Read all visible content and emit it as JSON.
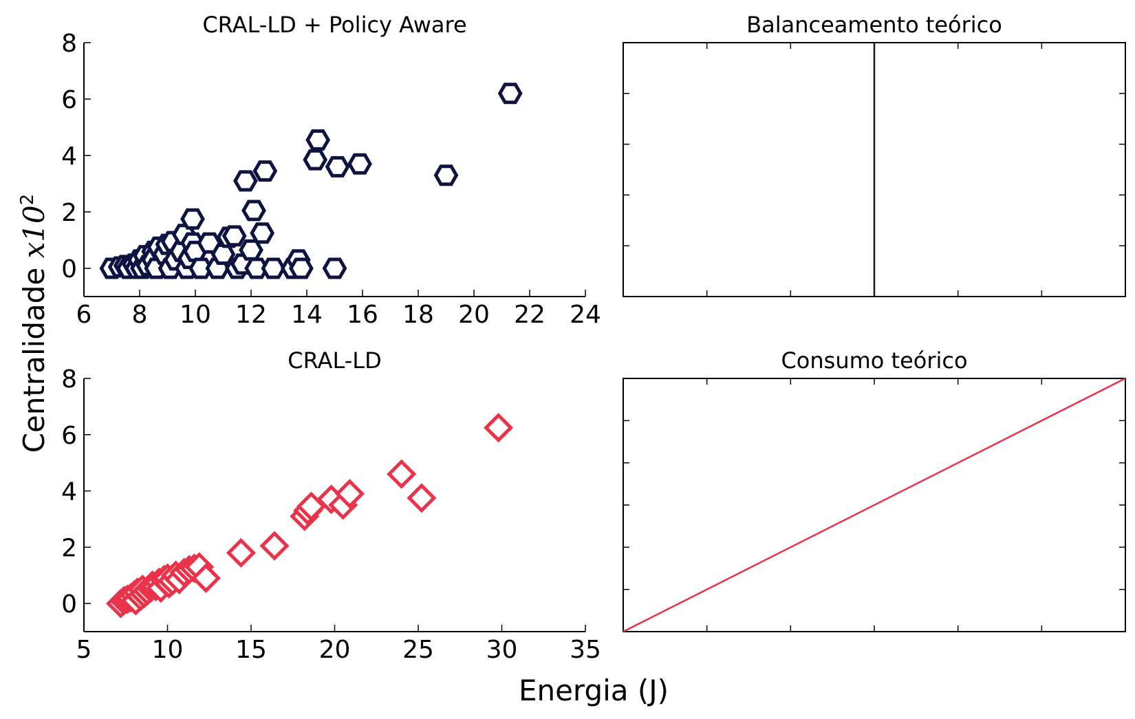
{
  "figure": {
    "ylabel": "Centralidade",
    "ylabel_math": "x10",
    "ylabel_exp": "2",
    "xlabel": "Energia (J)"
  },
  "colors": {
    "navy": "#0d1442",
    "red": "#e8334a"
  },
  "chart_data": [
    {
      "id": "top-left",
      "type": "scatter",
      "title": "CRAL-LD + Policy Aware",
      "marker": "hexagon",
      "color": "#0d1442",
      "xlim": [
        6,
        24
      ],
      "ylim": [
        -1,
        8
      ],
      "xticks": [
        6,
        8,
        10,
        12,
        14,
        16,
        18,
        20,
        22,
        24
      ],
      "yticks": [
        0,
        2,
        4,
        6,
        8
      ],
      "points": [
        [
          7.0,
          0.0
        ],
        [
          7.3,
          0.05
        ],
        [
          7.5,
          0.1
        ],
        [
          7.6,
          0.0
        ],
        [
          7.8,
          0.15
        ],
        [
          7.9,
          0.0
        ],
        [
          8.0,
          0.3
        ],
        [
          8.1,
          0.0
        ],
        [
          8.2,
          0.45
        ],
        [
          8.3,
          0.1
        ],
        [
          8.5,
          0.6
        ],
        [
          8.5,
          0.3
        ],
        [
          8.6,
          0.0
        ],
        [
          8.7,
          0.75
        ],
        [
          8.9,
          0.5
        ],
        [
          9.0,
          0.85
        ],
        [
          9.1,
          0.0
        ],
        [
          9.2,
          0.95
        ],
        [
          9.3,
          0.3
        ],
        [
          9.5,
          0.6
        ],
        [
          9.6,
          1.2
        ],
        [
          9.7,
          0.0
        ],
        [
          9.8,
          0.35
        ],
        [
          9.9,
          0.9
        ],
        [
          9.9,
          1.75
        ],
        [
          10.0,
          0.6
        ],
        [
          10.2,
          0.0
        ],
        [
          10.5,
          0.9
        ],
        [
          10.8,
          0.0
        ],
        [
          11.0,
          0.5
        ],
        [
          11.2,
          1.1
        ],
        [
          11.4,
          1.15
        ],
        [
          11.5,
          0.0
        ],
        [
          11.7,
          0.15
        ],
        [
          11.8,
          3.1
        ],
        [
          12.0,
          0.65
        ],
        [
          12.1,
          2.05
        ],
        [
          12.2,
          0.0
        ],
        [
          12.4,
          1.25
        ],
        [
          12.5,
          3.45
        ],
        [
          12.8,
          0.0
        ],
        [
          13.5,
          0.0
        ],
        [
          13.7,
          0.3
        ],
        [
          13.8,
          0.0
        ],
        [
          14.3,
          3.85
        ],
        [
          14.4,
          4.55
        ],
        [
          15.0,
          0.0
        ],
        [
          15.1,
          3.6
        ],
        [
          15.9,
          3.7
        ],
        [
          19.0,
          3.3
        ],
        [
          21.3,
          6.2
        ]
      ]
    },
    {
      "id": "top-right",
      "type": "line",
      "title": "Balanceamento teórico",
      "color": "#0d1442",
      "line": "vertical",
      "xticks_count": 5,
      "yticks_count": 4
    },
    {
      "id": "bottom-left",
      "type": "scatter",
      "title": "CRAL-LD",
      "marker": "diamond",
      "color": "#e8334a",
      "xlim": [
        5,
        35
      ],
      "ylim": [
        -1,
        8
      ],
      "xticks": [
        5,
        10,
        15,
        20,
        25,
        30,
        35
      ],
      "yticks": [
        0,
        2,
        4,
        6,
        8
      ],
      "points": [
        [
          7.2,
          0.0
        ],
        [
          7.4,
          0.1
        ],
        [
          7.6,
          0.15
        ],
        [
          7.8,
          0.2
        ],
        [
          8.0,
          0.3
        ],
        [
          8.1,
          0.1
        ],
        [
          8.2,
          0.4
        ],
        [
          8.4,
          0.25
        ],
        [
          8.5,
          0.5
        ],
        [
          8.6,
          0.35
        ],
        [
          8.8,
          0.45
        ],
        [
          9.0,
          0.55
        ],
        [
          9.1,
          0.65
        ],
        [
          9.3,
          0.6
        ],
        [
          9.5,
          0.75
        ],
        [
          9.6,
          0.55
        ],
        [
          9.8,
          0.85
        ],
        [
          10.0,
          0.9
        ],
        [
          10.1,
          0.7
        ],
        [
          10.3,
          0.8
        ],
        [
          10.5,
          1.0
        ],
        [
          10.7,
          0.85
        ],
        [
          11.0,
          1.1
        ],
        [
          11.3,
          1.2
        ],
        [
          11.6,
          1.25
        ],
        [
          11.9,
          1.3
        ],
        [
          12.3,
          0.9
        ],
        [
          14.4,
          1.8
        ],
        [
          16.4,
          2.05
        ],
        [
          18.2,
          3.1
        ],
        [
          18.4,
          3.3
        ],
        [
          18.6,
          3.45
        ],
        [
          19.8,
          3.7
        ],
        [
          20.5,
          3.5
        ],
        [
          20.9,
          3.9
        ],
        [
          24.0,
          4.6
        ],
        [
          25.2,
          3.75
        ],
        [
          29.8,
          6.25
        ]
      ]
    },
    {
      "id": "bottom-right",
      "type": "line",
      "title": "Consumo teórico",
      "color": "#e8334a",
      "line": "diagonal",
      "xticks_count": 5,
      "yticks_count": 5
    }
  ]
}
